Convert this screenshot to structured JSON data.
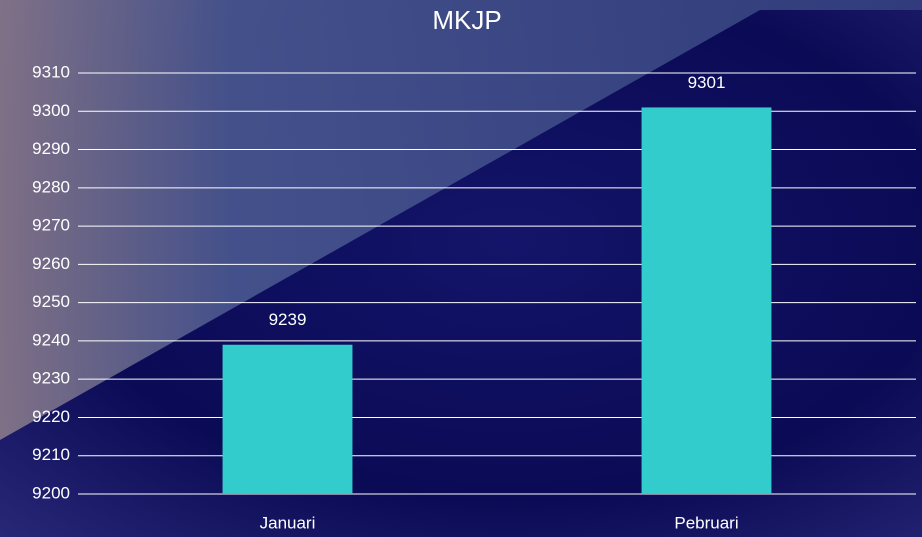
{
  "chart_data": {
    "type": "bar",
    "title": "MKJP",
    "categories": [
      "Januari",
      "Pebruari"
    ],
    "values": [
      9239,
      9301
    ],
    "color": "#33cccc",
    "ylim": [
      9200,
      9310
    ],
    "yticks": [
      9200,
      9210,
      9220,
      9230,
      9240,
      9250,
      9260,
      9270,
      9280,
      9290,
      9300,
      9310
    ],
    "grid": true
  }
}
